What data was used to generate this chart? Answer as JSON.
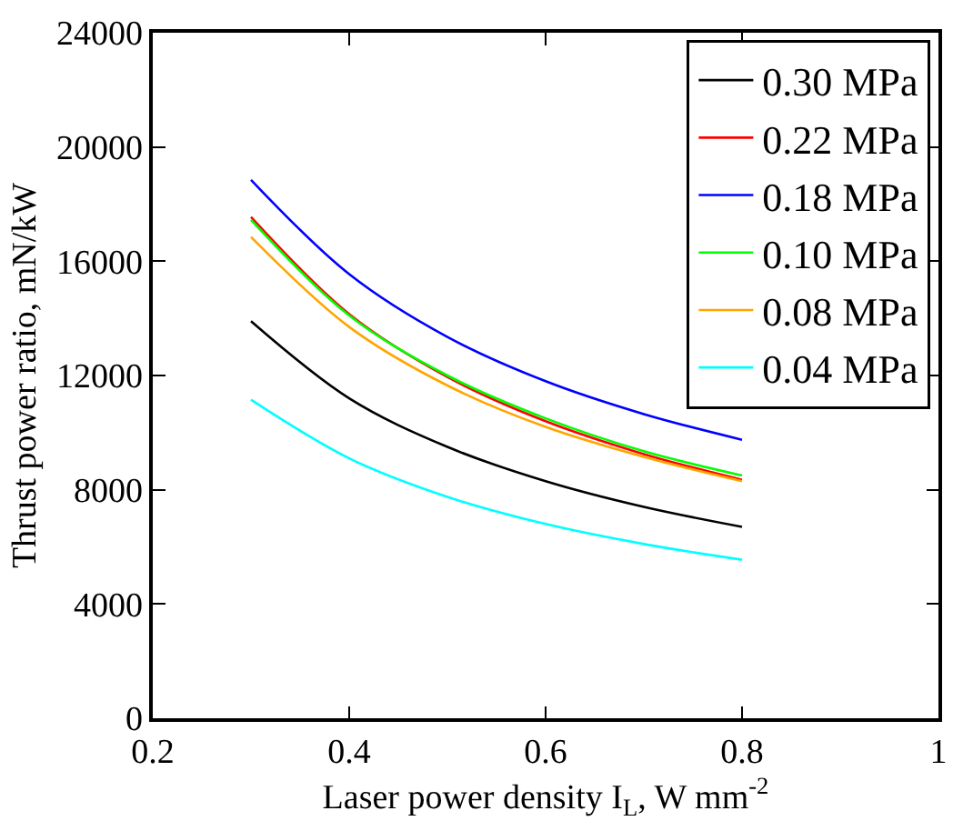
{
  "chart_data": {
    "type": "line",
    "xlabel": "Laser power density I$_{L}$, W mm$^{-2}$",
    "ylabel": "Thrust power ratio, mN/kW",
    "x": [
      0.3,
      0.4,
      0.5,
      0.6,
      0.7,
      0.8
    ],
    "series": [
      {
        "name": "0.30 MPa",
        "color": "#000000",
        "values": [
          13900,
          11200,
          9500,
          8300,
          7400,
          6700
        ]
      },
      {
        "name": "0.22 MPa",
        "color": "#ff0000",
        "values": [
          17550,
          14150,
          11950,
          10400,
          9250,
          8350
        ]
      },
      {
        "name": "0.18 MPa",
        "color": "#0000ff",
        "values": [
          18850,
          15550,
          13350,
          11800,
          10650,
          9750
        ]
      },
      {
        "name": "0.10 MPa",
        "color": "#00ff00",
        "values": [
          17450,
          14100,
          12000,
          10500,
          9350,
          8500
        ]
      },
      {
        "name": "0.08 MPa",
        "color": "#ffa500",
        "values": [
          16850,
          13700,
          11650,
          10200,
          9150,
          8300
        ]
      },
      {
        "name": "0.04 MPa",
        "color": "#00ffff",
        "values": [
          11150,
          9100,
          7750,
          6800,
          6100,
          5550
        ]
      }
    ],
    "xlim": [
      0.2,
      1
    ],
    "xticks": [
      0.2,
      0.4,
      0.6,
      0.8,
      1
    ],
    "ylim": [
      0,
      24000
    ],
    "yticks": [
      0,
      4000,
      8000,
      12000,
      16000,
      20000,
      24000
    ],
    "grid": false,
    "legend": "top right",
    "marker": "none",
    "line_style": "solid"
  }
}
